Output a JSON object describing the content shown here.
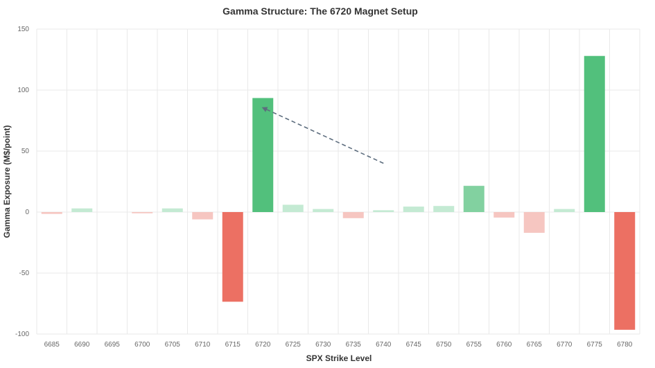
{
  "chart_data": {
    "type": "bar",
    "title": "Gamma Structure: The 6720 Magnet Setup",
    "xlabel": "SPX Strike Level",
    "ylabel": "Gamma Exposure (M$/point)",
    "ylim": [
      -100,
      150
    ],
    "yticks": [
      150,
      100,
      50,
      0,
      -50,
      -100
    ],
    "grid": true,
    "categories": [
      "6685",
      "6690",
      "6695",
      "6700",
      "6705",
      "6710",
      "6715",
      "6720",
      "6725",
      "6730",
      "6735",
      "6740",
      "6745",
      "6750",
      "6755",
      "6760",
      "6765",
      "6770",
      "6775",
      "6780"
    ],
    "values": [
      -1.5,
      3,
      0,
      -1,
      3,
      -6,
      -73.5,
      93.5,
      6,
      2.5,
      -5,
      1.5,
      4.5,
      5,
      21.5,
      -4.5,
      -17,
      2.5,
      128,
      -96.5
    ],
    "colors": {
      "positive_strong": "#52c07c",
      "positive_medium": "#82d1a0",
      "positive_light": "#c4ead3",
      "negative_strong": "#ec7063",
      "negative_light": "#f6c6c1",
      "arrow": "#5d6d7e"
    },
    "annotations": [
      {
        "type": "arrow",
        "from": {
          "x": "6740",
          "y": 40
        },
        "to": {
          "x": "6720",
          "y": 85
        },
        "style": "dashed"
      }
    ]
  }
}
